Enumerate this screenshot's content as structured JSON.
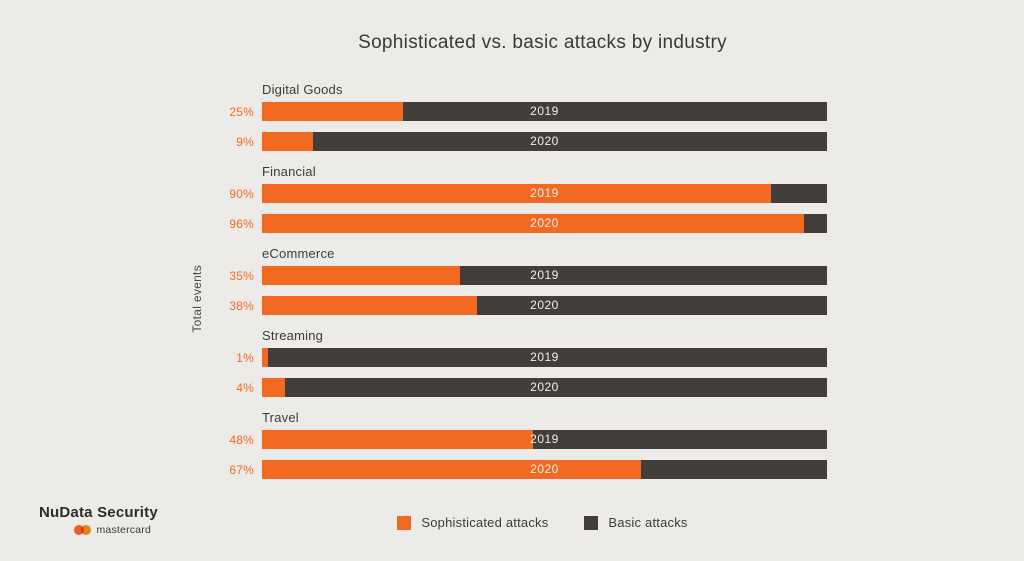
{
  "title": "Sophisticated vs. basic attacks by industry",
  "colors": {
    "background": "#EDEBE7",
    "sophisticated": "#F26A21",
    "basic": "#413E3C",
    "title_text": "#3B3937",
    "label_text": "#3B3B39"
  },
  "chart_data": {
    "type": "bar",
    "orientation": "horizontal",
    "stacked": true,
    "units": "percent of total events",
    "title": "Sophisticated vs. basic attacks by industry",
    "ylabel": "Total events",
    "xlim": [
      0,
      100
    ],
    "grid": false,
    "legend_position": "bottom",
    "series_names": [
      "Sophisticated attacks",
      "Basic attacks"
    ],
    "groups": [
      {
        "industry": "Digital Goods",
        "bars": [
          {
            "year": "2019",
            "sophisticated_pct": 25,
            "basic_pct": 75,
            "label": "25%"
          },
          {
            "year": "2020",
            "sophisticated_pct": 9,
            "basic_pct": 91,
            "label": "9%"
          }
        ]
      },
      {
        "industry": "Financial",
        "bars": [
          {
            "year": "2019",
            "sophisticated_pct": 90,
            "basic_pct": 10,
            "label": "90%"
          },
          {
            "year": "2020",
            "sophisticated_pct": 96,
            "basic_pct": 4,
            "label": "96%"
          }
        ]
      },
      {
        "industry": "eCommerce",
        "bars": [
          {
            "year": "2019",
            "sophisticated_pct": 35,
            "basic_pct": 65,
            "label": "35%"
          },
          {
            "year": "2020",
            "sophisticated_pct": 38,
            "basic_pct": 62,
            "label": "38%"
          }
        ]
      },
      {
        "industry": "Streaming",
        "bars": [
          {
            "year": "2019",
            "sophisticated_pct": 1,
            "basic_pct": 99,
            "label": "1%"
          },
          {
            "year": "2020",
            "sophisticated_pct": 4,
            "basic_pct": 96,
            "label": "4%"
          }
        ]
      },
      {
        "industry": "Travel",
        "bars": [
          {
            "year": "2019",
            "sophisticated_pct": 48,
            "basic_pct": 52,
            "label": "48%"
          },
          {
            "year": "2020",
            "sophisticated_pct": 67,
            "basic_pct": 33,
            "label": "67%"
          }
        ]
      }
    ]
  },
  "legend": {
    "items": [
      {
        "label": "Sophisticated attacks",
        "color": "#F26A21"
      },
      {
        "label": "Basic attacks",
        "color": "#413E3C"
      }
    ]
  },
  "branding": {
    "name": "NuData Security",
    "mastercard": "mastercard"
  }
}
